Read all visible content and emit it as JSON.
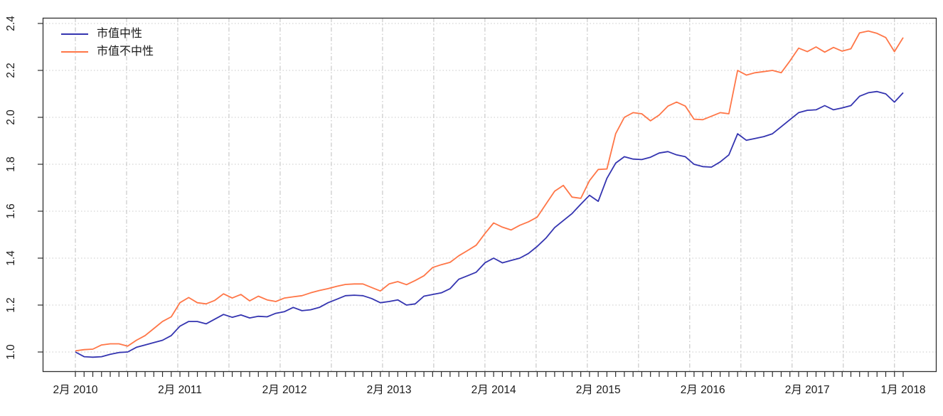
{
  "chart_data": {
    "type": "line",
    "title": "",
    "xlabel": "",
    "ylabel": "",
    "x_unit": "month",
    "x_start": "2010-02",
    "x_end": "2018-01",
    "months": [
      "2010-02",
      "2010-03",
      "2010-04",
      "2010-05",
      "2010-06",
      "2010-07",
      "2010-08",
      "2010-09",
      "2010-10",
      "2010-11",
      "2010-12",
      "2011-01",
      "2011-02",
      "2011-03",
      "2011-04",
      "2011-05",
      "2011-06",
      "2011-07",
      "2011-08",
      "2011-09",
      "2011-10",
      "2011-11",
      "2011-12",
      "2012-01",
      "2012-02",
      "2012-03",
      "2012-04",
      "2012-05",
      "2012-06",
      "2012-07",
      "2012-08",
      "2012-09",
      "2012-10",
      "2012-11",
      "2012-12",
      "2013-01",
      "2013-02",
      "2013-03",
      "2013-04",
      "2013-05",
      "2013-06",
      "2013-07",
      "2013-08",
      "2013-09",
      "2013-10",
      "2013-11",
      "2013-12",
      "2014-01",
      "2014-02",
      "2014-03",
      "2014-04",
      "2014-05",
      "2014-06",
      "2014-07",
      "2014-08",
      "2014-09",
      "2014-10",
      "2014-11",
      "2014-12",
      "2015-01",
      "2015-02",
      "2015-03",
      "2015-04",
      "2015-05",
      "2015-06",
      "2015-07",
      "2015-08",
      "2015-09",
      "2015-10",
      "2015-11",
      "2015-12",
      "2016-01",
      "2016-02",
      "2016-03",
      "2016-04",
      "2016-05",
      "2016-06",
      "2016-07",
      "2016-08",
      "2016-09",
      "2016-10",
      "2016-11",
      "2016-12",
      "2017-01",
      "2017-02",
      "2017-03",
      "2017-04",
      "2017-05",
      "2017-06",
      "2017-07",
      "2017-08",
      "2017-09",
      "2017-10",
      "2017-11",
      "2017-12",
      "2018-01"
    ],
    "series": [
      {
        "name": "市值中性",
        "color": "#3434B0",
        "values": [
          1.0,
          0.98,
          0.978,
          0.98,
          0.99,
          0.998,
          1.0,
          1.02,
          1.03,
          1.04,
          1.05,
          1.07,
          1.11,
          1.13,
          1.13,
          1.12,
          1.14,
          1.16,
          1.148,
          1.158,
          1.145,
          1.152,
          1.15,
          1.165,
          1.172,
          1.19,
          1.176,
          1.18,
          1.19,
          1.21,
          1.225,
          1.24,
          1.242,
          1.24,
          1.228,
          1.21,
          1.215,
          1.222,
          1.2,
          1.205,
          1.238,
          1.245,
          1.252,
          1.27,
          1.31,
          1.325,
          1.34,
          1.38,
          1.4,
          1.38,
          1.39,
          1.4,
          1.42,
          1.45,
          1.485,
          1.53,
          1.56,
          1.59,
          1.63,
          1.668,
          1.642,
          1.74,
          1.805,
          1.832,
          1.822,
          1.82,
          1.83,
          1.848,
          1.854,
          1.84,
          1.832,
          1.8,
          1.79,
          1.788,
          1.81,
          1.84,
          1.93,
          1.902,
          1.91,
          1.918,
          1.93,
          1.96,
          1.99,
          2.02,
          2.03,
          2.032,
          2.05,
          2.032,
          2.04,
          2.05,
          2.09,
          2.105,
          2.11,
          2.1,
          2.065,
          2.105
        ]
      },
      {
        "name": "市值不中性",
        "color": "#FF7647",
        "values": [
          1.005,
          1.01,
          1.012,
          1.03,
          1.035,
          1.035,
          1.025,
          1.05,
          1.07,
          1.1,
          1.13,
          1.15,
          1.21,
          1.232,
          1.21,
          1.205,
          1.22,
          1.248,
          1.23,
          1.245,
          1.218,
          1.238,
          1.222,
          1.215,
          1.23,
          1.235,
          1.24,
          1.252,
          1.262,
          1.27,
          1.28,
          1.288,
          1.29,
          1.29,
          1.275,
          1.26,
          1.29,
          1.3,
          1.287,
          1.305,
          1.325,
          1.36,
          1.372,
          1.382,
          1.41,
          1.432,
          1.455,
          1.505,
          1.55,
          1.532,
          1.52,
          1.54,
          1.555,
          1.575,
          1.63,
          1.685,
          1.71,
          1.66,
          1.655,
          1.73,
          1.778,
          1.78,
          1.93,
          2.0,
          2.02,
          2.015,
          1.985,
          2.01,
          2.048,
          2.065,
          2.048,
          1.992,
          1.99,
          2.005,
          2.02,
          2.015,
          2.2,
          2.18,
          2.19,
          2.195,
          2.2,
          2.19,
          2.24,
          2.295,
          2.28,
          2.3,
          2.278,
          2.298,
          2.282,
          2.292,
          2.36,
          2.368,
          2.358,
          2.34,
          2.28,
          2.34
        ]
      }
    ],
    "ylim": [
      0.92,
      2.42
    ],
    "y_ticks": [
      "1.0",
      "1.2",
      "1.4",
      "1.6",
      "1.8",
      "2.0",
      "2.2",
      "2.4"
    ],
    "x_tick_labels": [
      {
        "label": "2月 2010",
        "month": 0
      },
      {
        "label": "2月 2011",
        "month": 12
      },
      {
        "label": "2月 2012",
        "month": 24
      },
      {
        "label": "2月 2013",
        "month": 36
      },
      {
        "label": "2月 2014",
        "month": 48
      },
      {
        "label": "2月 2015",
        "month": 60
      },
      {
        "label": "2月 2016",
        "month": 72
      },
      {
        "label": "2月 2017",
        "month": 84
      },
      {
        "label": "1月 2018",
        "month": 95
      }
    ],
    "minor_x_ticks": "monthly",
    "grid": {
      "horizontal_style": "dotted",
      "vertical_style": "dash-dot",
      "color": "#C9C9C9",
      "vertical_line_count": 17
    },
    "legend_position": "top-left",
    "axis_color": "#2E2E2E",
    "tick_label_color": "#1a1a1a"
  }
}
